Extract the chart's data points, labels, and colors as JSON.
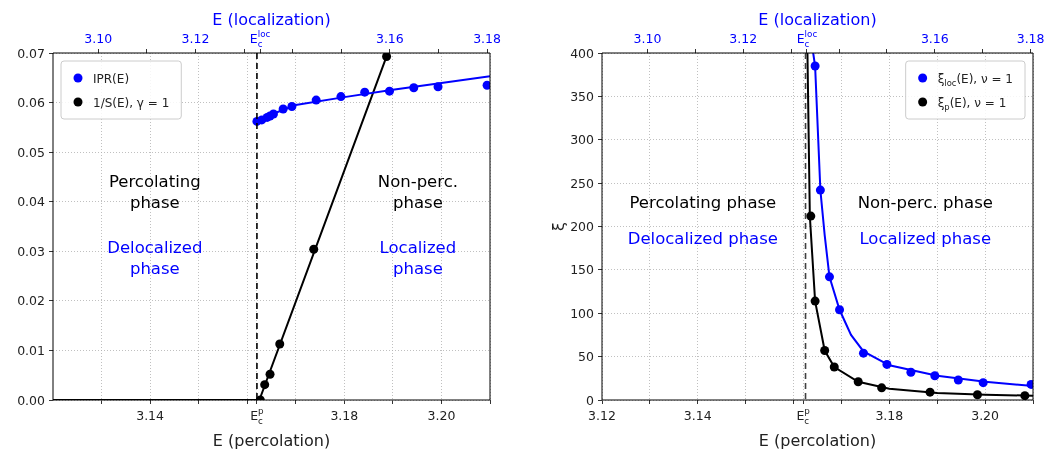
{
  "chart_data": [
    {
      "type": "scatter",
      "xlabel": "E (percolation)",
      "x2label": "E (localization)",
      "xlim": [
        3.12,
        3.21
      ],
      "xticks": [
        {
          "value": 3.13,
          "label": null
        },
        3.14,
        {
          "value": 3.15,
          "label": null
        },
        {
          "value": 3.16,
          "label": null
        },
        {
          "value": 3.162,
          "label": "E$_{c}$$^{p}$"
        },
        {
          "value": 3.17,
          "label": null
        },
        3.18,
        {
          "value": 3.19,
          "label": null
        },
        {
          "value": 3.2,
          "label": "3.20"
        },
        {
          "value": 3.21,
          "label": null
        }
      ],
      "x2lim": [
        3.0907,
        3.1806
      ],
      "x2ticks": [
        {
          "value": 3.1,
          "label": "3.10"
        },
        {
          "value": 3.11,
          "label": null
        },
        3.12,
        {
          "value": 3.13,
          "label": null
        },
        {
          "value": 3.1333,
          "label": "E$_{c}$$^{loc}$"
        },
        {
          "value": 3.14,
          "label": null
        },
        {
          "value": 3.15,
          "label": null
        },
        3.16,
        {
          "value": 3.17,
          "label": null
        },
        3.18
      ],
      "ylim": [
        0,
        0.07
      ],
      "yticks": [
        {
          "value": 0,
          "label": "0.00"
        },
        {
          "value": 0.01,
          "label": "0.01"
        },
        {
          "value": 0.02,
          "label": "0.02"
        },
        {
          "value": 0.03,
          "label": "0.03"
        },
        {
          "value": 0.04,
          "label": "0.04"
        },
        {
          "value": 0.05,
          "label": "0.05"
        },
        {
          "value": 0.06,
          "label": "0.06"
        },
        {
          "value": 0.07,
          "label": "0.07"
        }
      ],
      "grid": true,
      "legend": "top left",
      "marker": "circle",
      "ref_lines": [
        {
          "axis": "x",
          "value": 3.162,
          "color": "#000000",
          "line_style": "dashed"
        }
      ],
      "annotations": [
        "Percolating phase",
        "Delocalized phase",
        "Non-perc. phase",
        "Localized phase"
      ],
      "series": [
        {
          "type": "line",
          "marker": "none",
          "color": "#0000ff",
          "x": [
            3.162,
            3.164,
            3.166,
            3.17,
            3.18,
            3.19,
            3.21
          ],
          "values": [
            0.0557,
            0.0572,
            0.058,
            0.0595,
            0.0611,
            0.0626,
            0.0653
          ]
        },
        {
          "type": "line",
          "marker": "none",
          "color": "#000000",
          "x": [
            3.12,
            3.1625,
            3.1887
          ],
          "values": [
            0,
            0,
            0.0693
          ]
        },
        {
          "name": "IPR(E)",
          "color": "#0000ff",
          "x": [
            3.162,
            3.163,
            3.1641,
            3.1647,
            3.1654,
            3.1674,
            3.1692,
            3.1742,
            3.1793,
            3.1842,
            3.1893,
            3.1943,
            3.1993,
            3.2094
          ],
          "values": [
            0.0562,
            0.0565,
            0.057,
            0.0573,
            0.0577,
            0.0587,
            0.0592,
            0.0605,
            0.0612,
            0.0621,
            0.0623,
            0.063,
            0.0632,
            0.0635
          ]
        },
        {
          "name": "1/S(E), γ = 1",
          "color": "#000000",
          "x": [
            3.1627,
            3.1636,
            3.1647,
            3.1667,
            3.1737,
            3.1887
          ],
          "values": [
            0,
            0.0031,
            0.0052,
            0.0113,
            0.0304,
            0.0693
          ]
        }
      ]
    },
    {
      "type": "scatter",
      "xlabel": "E (percolation)",
      "x2label": "E (localization)",
      "ylabel": "ξ",
      "xlim": [
        3.12,
        3.21
      ],
      "xticks": [
        3.12,
        {
          "value": 3.13,
          "label": null
        },
        3.14,
        {
          "value": 3.15,
          "label": null
        },
        {
          "value": 3.16,
          "label": null
        },
        {
          "value": 3.162,
          "label": "E$_{c}$$^{p}$"
        },
        {
          "value": 3.17,
          "label": null
        },
        3.18,
        {
          "value": 3.19,
          "label": null
        },
        {
          "value": 3.2,
          "label": "3.20"
        },
        {
          "value": 3.21,
          "label": null
        }
      ],
      "x2lim": [
        3.0905,
        3.1805
      ],
      "x2ticks": [
        {
          "value": 3.1,
          "label": "3.10"
        },
        {
          "value": 3.11,
          "label": null
        },
        3.12,
        {
          "value": 3.13,
          "label": null
        },
        {
          "value": 3.1333,
          "label": "E$_{c}$$^{loc}$"
        },
        {
          "value": 3.14,
          "label": null
        },
        {
          "value": 3.15,
          "label": null
        },
        3.16,
        {
          "value": 3.17,
          "label": null
        },
        3.18
      ],
      "ylim": [
        0,
        400
      ],
      "yticks": [
        0,
        50,
        100,
        150,
        200,
        250,
        300,
        350,
        400
      ],
      "grid": true,
      "legend": "top right",
      "marker": "circle",
      "ref_lines": [
        {
          "axis": "x",
          "value": 3.1625,
          "color": "#404040",
          "line_style": "dashed"
        }
      ],
      "annotations": [
        "Percolating phase",
        "Delocalized phase",
        "Non-perc. phase",
        "Localized phase"
      ],
      "series": [
        {
          "type": "line",
          "marker": "none",
          "color": "#0000ff",
          "x": [
            3.1641,
            3.1645,
            3.1656,
            3.1665,
            3.1675,
            3.1696,
            3.172,
            3.1746,
            3.18,
            3.19,
            3.2,
            3.21
          ],
          "values": [
            400,
            385,
            242,
            190,
            142,
            104,
            75,
            56,
            40,
            28,
            21,
            16
          ]
        },
        {
          "type": "line",
          "marker": "none",
          "color": "#000000",
          "x": [
            3.1629,
            3.1634,
            3.1645,
            3.1665,
            3.1685,
            3.1735,
            3.18,
            3.19,
            3.2,
            3.21
          ],
          "values": [
            400,
            212,
            114,
            57,
            38,
            21,
            13,
            8,
            6,
            5
          ]
        },
        {
          "name": "ξ$_{loc}$(E), ν = 1",
          "color": "#0000ff",
          "x": [
            3.1645,
            3.1656,
            3.1675,
            3.1696,
            3.1746,
            3.1795,
            3.1845,
            3.1895,
            3.1944,
            3.1996,
            3.2096
          ],
          "values": [
            385,
            242,
            142,
            104,
            54,
            41,
            32,
            28,
            23,
            20,
            18
          ]
        },
        {
          "name": "ξ$_{p}$(E), ν = 1",
          "color": "#000000",
          "x": [
            3.1636,
            3.1645,
            3.1665,
            3.1685,
            3.1735,
            3.1784,
            3.1885,
            3.1984,
            3.2083
          ],
          "values": [
            212,
            114,
            57,
            38,
            21,
            14,
            9,
            6,
            5
          ]
        }
      ]
    }
  ]
}
